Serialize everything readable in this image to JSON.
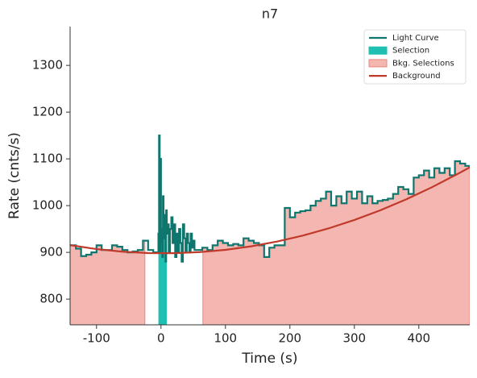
{
  "chart_data": {
    "type": "lightcurve",
    "title": "n7",
    "x_label": "Time (s)",
    "y_label": "Rate (cnts/s)",
    "xlim": [
      -141,
      479
    ],
    "ylim": [
      745,
      1383
    ],
    "xticks": [
      -100,
      0,
      100,
      200,
      300,
      400
    ],
    "yticks": [
      800,
      900,
      1000,
      1100,
      1200,
      1300
    ],
    "legend_position": "upper right",
    "series": [
      {
        "name": "Light Curve",
        "color": "#0f766e",
        "bins": [
          -141,
          -132,
          -124,
          -116,
          -108,
          -100,
          -92,
          -84,
          -76,
          -68,
          -60,
          -52,
          -44,
          -36,
          -28,
          -20,
          -12,
          -4,
          -3,
          -2,
          -1,
          0,
          1,
          2,
          3,
          4,
          5,
          6,
          7,
          8,
          9,
          10,
          12,
          14,
          16,
          18,
          20,
          22,
          24,
          26,
          28,
          30,
          32,
          34,
          36,
          38,
          40,
          42,
          44,
          46,
          48,
          50,
          52,
          56,
          64,
          72,
          80,
          88,
          96,
          104,
          112,
          120,
          128,
          136,
          144,
          152,
          160,
          168,
          176,
          184,
          192,
          200,
          208,
          216,
          224,
          232,
          240,
          248,
          256,
          264,
          272,
          280,
          288,
          296,
          304,
          312,
          320,
          328,
          336,
          344,
          352,
          360,
          368,
          376,
          384,
          392,
          400,
          408,
          416,
          424,
          432,
          440,
          448,
          456,
          464,
          472,
          479
        ],
        "values": [
          915,
          908,
          892,
          895,
          900,
          915,
          905,
          905,
          915,
          912,
          905,
          900,
          902,
          905,
          925,
          905,
          900,
          940,
          1150,
          900,
          1100,
          920,
          950,
          890,
          1020,
          930,
          960,
          980,
          880,
          990,
          940,
          960,
          900,
          950,
          975,
          920,
          960,
          890,
          940,
          900,
          950,
          920,
          880,
          960,
          930,
          900,
          940,
          920,
          900,
          940,
          910,
          925,
          905,
          905,
          910,
          905,
          915,
          925,
          920,
          915,
          918,
          915,
          930,
          925,
          920,
          915,
          890,
          910,
          915,
          915,
          995,
          975,
          985,
          988,
          990,
          1000,
          1010,
          1015,
          1030,
          1000,
          1020,
          1005,
          1030,
          1015,
          1030,
          1005,
          1020,
          1005,
          1010,
          1012,
          1015,
          1025,
          1040,
          1035,
          1025,
          1060,
          1065,
          1075,
          1060,
          1080,
          1070,
          1080,
          1065,
          1095,
          1090,
          1085
        ]
      },
      {
        "name": "Background",
        "color": "#c0392b",
        "x": [
          -141,
          -100,
          -60,
          -20,
          20,
          60,
          100,
          140,
          180,
          220,
          260,
          300,
          340,
          380,
          420,
          460,
          479
        ],
        "values": [
          915.5,
          907,
          901.5,
          898.5,
          898.2,
          900.5,
          905.4,
          912.9,
          923.1,
          935.9,
          951.3,
          969.3,
          989.9,
          1013.2,
          1039.1,
          1067.6,
          1082
        ]
      }
    ],
    "selection": {
      "name": "Selection",
      "color": "#1fc0b2",
      "ranges": [
        [
          -4,
          9
        ]
      ]
    },
    "bkg_selections": {
      "name": "Bkg. Selections",
      "color": "#f4b6b0",
      "edge_color": "#e8857a",
      "ranges": [
        [
          -141,
          -25
        ],
        [
          65,
          479
        ]
      ]
    }
  }
}
